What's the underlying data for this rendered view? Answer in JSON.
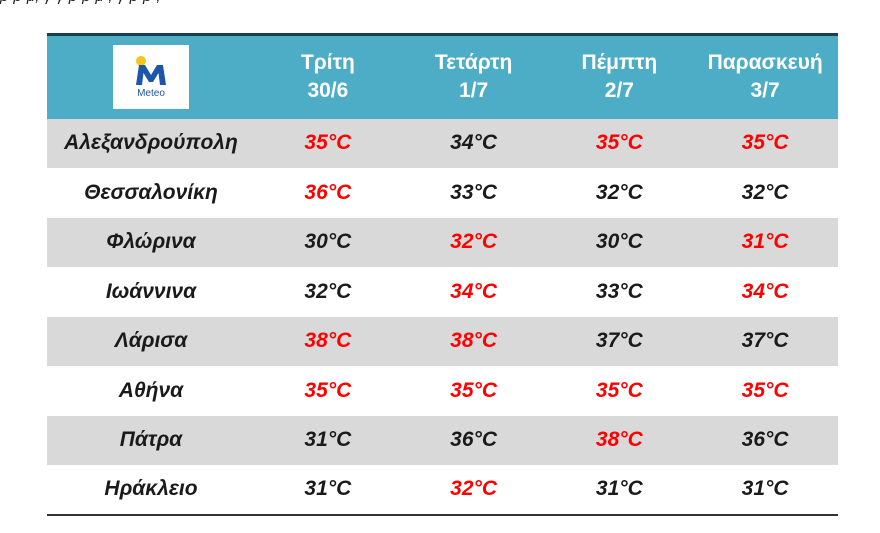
{
  "header": {
    "logo_text": "Meteo",
    "days": [
      {
        "day": "Τρίτη",
        "date": "30/6"
      },
      {
        "day": "Τετάρτη",
        "date": "1/7"
      },
      {
        "day": "Πέμπτη",
        "date": "2/7"
      },
      {
        "day": "Παρασκευή",
        "date": "3/7"
      }
    ]
  },
  "rows": [
    {
      "city": "Αλεξανδρούπολη",
      "temps": [
        {
          "v": "35",
          "hot": true
        },
        {
          "v": "34",
          "hot": false
        },
        {
          "v": "35",
          "hot": true
        },
        {
          "v": "35",
          "hot": true
        }
      ]
    },
    {
      "city": "Θεσσαλονίκη",
      "temps": [
        {
          "v": "36",
          "hot": true
        },
        {
          "v": "33",
          "hot": false
        },
        {
          "v": "32",
          "hot": false
        },
        {
          "v": "32",
          "hot": false
        }
      ]
    },
    {
      "city": "Φλώρινα",
      "temps": [
        {
          "v": "30",
          "hot": false
        },
        {
          "v": "32",
          "hot": true
        },
        {
          "v": "30",
          "hot": false
        },
        {
          "v": "31",
          "hot": true
        }
      ]
    },
    {
      "city": "Ιωάννινα",
      "temps": [
        {
          "v": "32",
          "hot": false
        },
        {
          "v": "34",
          "hot": true
        },
        {
          "v": "33",
          "hot": false
        },
        {
          "v": "34",
          "hot": true
        }
      ]
    },
    {
      "city": "Λάρισα",
      "temps": [
        {
          "v": "38",
          "hot": true
        },
        {
          "v": "38",
          "hot": true
        },
        {
          "v": "37",
          "hot": false
        },
        {
          "v": "37",
          "hot": false
        }
      ]
    },
    {
      "city": "Αθήνα",
      "temps": [
        {
          "v": "35",
          "hot": true
        },
        {
          "v": "35",
          "hot": true
        },
        {
          "v": "35",
          "hot": true
        },
        {
          "v": "35",
          "hot": true
        }
      ]
    },
    {
      "city": "Πάτρα",
      "temps": [
        {
          "v": "31",
          "hot": false
        },
        {
          "v": "36",
          "hot": false
        },
        {
          "v": "38",
          "hot": true
        },
        {
          "v": "36",
          "hot": false
        }
      ]
    },
    {
      "city": "Ηράκλειο",
      "temps": [
        {
          "v": "31",
          "hot": false
        },
        {
          "v": "32",
          "hot": true
        },
        {
          "v": "31",
          "hot": false
        },
        {
          "v": "31",
          "hot": false
        }
      ]
    }
  ],
  "unit": "°C",
  "colors": {
    "header_bg": "#4eadc6",
    "hot": "#ff0000",
    "normal": "#1a1a1a",
    "shaded_row": "#d9d9d9",
    "logo_blue": "#1d55a8",
    "logo_yellow": "#f5c518"
  }
}
